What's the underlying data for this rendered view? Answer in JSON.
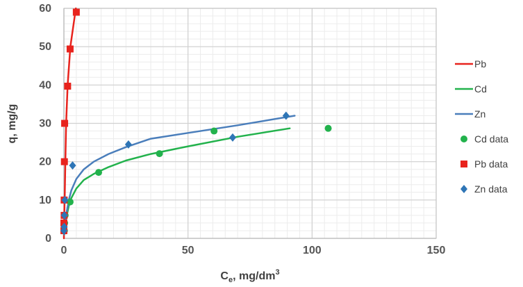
{
  "chart_data": {
    "type": "scatter",
    "title": "",
    "xlabel": {
      "main": "C",
      "sub": "e",
      "rest": ", mg/dm",
      "sup": "3"
    },
    "ylabel": "q, mg/g",
    "xlim": [
      0,
      150
    ],
    "ylim": [
      0,
      60
    ],
    "x_ticks": [
      0,
      50,
      100,
      150
    ],
    "y_ticks": [
      0,
      10,
      20,
      30,
      40,
      50,
      60
    ],
    "x_minor_step": 5,
    "y_minor_step": 2,
    "grid": true,
    "legend_position": "right",
    "series": [
      {
        "name": "Pb",
        "kind": "line",
        "color": "#e8231d",
        "points": [
          [
            0,
            0
          ],
          [
            0.05,
            2
          ],
          [
            0.1,
            4
          ],
          [
            0.15,
            6
          ],
          [
            0.3,
            10
          ],
          [
            0.6,
            20
          ],
          [
            0.9,
            30
          ],
          [
            1.5,
            40
          ],
          [
            2.6,
            50
          ],
          [
            4.8,
            60
          ]
        ]
      },
      {
        "name": "Cd",
        "kind": "line",
        "color": "#22b24c",
        "points": [
          [
            0.1,
            1
          ],
          [
            0.5,
            3
          ],
          [
            1,
            5.5
          ],
          [
            2,
            8.5
          ],
          [
            3,
            10.5
          ],
          [
            5,
            13
          ],
          [
            8,
            15.2
          ],
          [
            12,
            16.8
          ],
          [
            18,
            18.6
          ],
          [
            25,
            20.3
          ],
          [
            35,
            22
          ],
          [
            50,
            24
          ],
          [
            70,
            26.5
          ],
          [
            91,
            28.7
          ]
        ]
      },
      {
        "name": "Zn",
        "kind": "line",
        "color": "#4a7ebb",
        "points": [
          [
            0.1,
            1
          ],
          [
            0.5,
            3.5
          ],
          [
            1,
            6.5
          ],
          [
            2,
            10
          ],
          [
            3,
            12.5
          ],
          [
            5,
            15.5
          ],
          [
            8,
            18
          ],
          [
            12,
            20
          ],
          [
            18,
            22
          ],
          [
            25,
            23.8
          ],
          [
            35,
            26
          ],
          [
            50,
            27.5
          ],
          [
            70,
            29.5
          ],
          [
            93,
            32
          ]
        ]
      },
      {
        "name": "Cd data",
        "kind": "marker",
        "marker": "circle",
        "color": "#22b24c",
        "points": [
          [
            0.2,
            2
          ],
          [
            0.3,
            4
          ],
          [
            0.5,
            6
          ],
          [
            2.5,
            9.5
          ],
          [
            14,
            17.2
          ],
          [
            38.5,
            22.1
          ],
          [
            60.5,
            28
          ],
          [
            106.5,
            28.7
          ]
        ]
      },
      {
        "name": "Pb data",
        "kind": "marker",
        "marker": "square",
        "color": "#e8231d",
        "points": [
          [
            0,
            2
          ],
          [
            0,
            4
          ],
          [
            0.1,
            6
          ],
          [
            0.1,
            10
          ],
          [
            0.2,
            20
          ],
          [
            0.3,
            30
          ],
          [
            1.5,
            39.7
          ],
          [
            2.5,
            49.4
          ],
          [
            5,
            59
          ]
        ]
      },
      {
        "name": "Zn data",
        "kind": "marker",
        "marker": "diamond",
        "color": "#2e75b6",
        "points": [
          [
            0,
            2
          ],
          [
            0.1,
            3
          ],
          [
            0.2,
            6
          ],
          [
            0.4,
            10
          ],
          [
            3.5,
            19
          ],
          [
            26,
            24.5
          ],
          [
            68,
            26.3
          ],
          [
            89.5,
            32
          ]
        ]
      }
    ],
    "legend_order": [
      "Pb",
      "Cd",
      "Zn",
      "Cd data",
      "Pb data",
      "Zn data"
    ]
  }
}
